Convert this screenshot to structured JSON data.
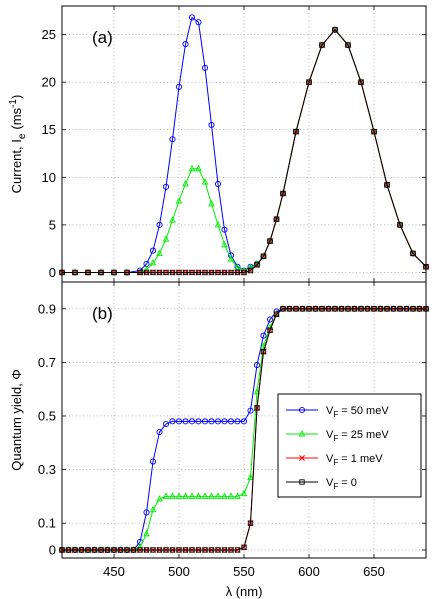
{
  "chart_data": [
    {
      "type": "line",
      "panel_label": "(a)",
      "ylabel": "Current, I",
      "ylabel_sub": "e",
      "ylabel_unit": "(ms",
      "ylabel_sup": "-1",
      "ylabel_close": ")",
      "xlim": [
        410,
        690
      ],
      "ylim": [
        -1,
        28
      ],
      "x_ticks": [
        450,
        500,
        550,
        600,
        650
      ],
      "y_ticks": [
        0,
        5,
        10,
        15,
        20,
        25
      ],
      "y_tick_labels": [
        "0",
        "5",
        "10",
        "15",
        "20",
        "25"
      ],
      "grid": true,
      "x": [
        410,
        420,
        430,
        440,
        450,
        460,
        470,
        475,
        480,
        485,
        490,
        495,
        500,
        505,
        510,
        515,
        520,
        525,
        530,
        535,
        540,
        545,
        550,
        555,
        560,
        565,
        570,
        575,
        580,
        590,
        600,
        610,
        620,
        630,
        640,
        650,
        660,
        670,
        680,
        690
      ],
      "series": [
        {
          "name": "V_F = 50 meV",
          "color": "#0000ff",
          "marker": "circle",
          "values": [
            0,
            0,
            0,
            0,
            0,
            0,
            0.2,
            0.9,
            2.3,
            5,
            9,
            14,
            19.5,
            24,
            26.8,
            26.3,
            21.5,
            15.5,
            9.3,
            4.5,
            1.8,
            0.6,
            0.2,
            0.6,
            0.9,
            1.7,
            3.3,
            5.6,
            8.3,
            14.8,
            20,
            23.9,
            25.5,
            23.9,
            20,
            14.8,
            9.2,
            5,
            2,
            0.6
          ]
        },
        {
          "name": "V_F = 25 meV",
          "color": "#00ee00",
          "marker": "triangle",
          "values": [
            0,
            0,
            0,
            0,
            0,
            0,
            0,
            0.3,
            1,
            2,
            3.5,
            5.5,
            7.5,
            9.3,
            10.9,
            10.9,
            9.5,
            7.2,
            5,
            2.9,
            1.4,
            0.5,
            0.2,
            0.5,
            0.9,
            1.7,
            3.3,
            5.6,
            8.3,
            14.8,
            20,
            23.9,
            25.5,
            23.9,
            20,
            14.8,
            9.2,
            5,
            2,
            0.6
          ]
        },
        {
          "name": "V_F = 1 meV",
          "color": "#ff0000",
          "marker": "x",
          "values": [
            0,
            0,
            0,
            0,
            0,
            0,
            0,
            0,
            0,
            0,
            0,
            0,
            0,
            0,
            0,
            0,
            0,
            0,
            0,
            0,
            0,
            0,
            0,
            0.2,
            0.8,
            1.7,
            3.3,
            5.6,
            8.3,
            14.8,
            20,
            23.9,
            25.5,
            23.9,
            20,
            14.8,
            9.2,
            5,
            2,
            0.6
          ]
        },
        {
          "name": "V_F = 0",
          "color": "#000000",
          "marker": "square",
          "values": [
            0,
            0,
            0,
            0,
            0,
            0,
            0,
            0,
            0,
            0,
            0,
            0,
            0,
            0,
            0,
            0,
            0,
            0,
            0,
            0,
            0,
            0,
            0,
            0.2,
            0.8,
            1.7,
            3.3,
            5.6,
            8.3,
            14.8,
            20,
            23.9,
            25.5,
            23.9,
            20,
            14.8,
            9.2,
            5,
            2,
            0.6
          ]
        }
      ]
    },
    {
      "type": "line",
      "panel_label": "(b)",
      "ylabel": "Quantum yield, Φ",
      "xlabel": "λ (nm)",
      "xlim": [
        410,
        690
      ],
      "ylim": [
        -0.03,
        1.0
      ],
      "x_ticks": [
        450,
        500,
        550,
        600,
        650
      ],
      "x_tick_labels": [
        "450",
        "500",
        "550",
        "600",
        "650"
      ],
      "y_ticks": [
        0,
        0.1,
        0.3,
        0.5,
        0.7,
        0.9
      ],
      "y_tick_labels": [
        "0",
        "0.1",
        "0.3",
        "0.5",
        "0.7",
        "0.9"
      ],
      "grid": true,
      "legend_position": "center-right",
      "x": [
        410,
        415,
        420,
        425,
        430,
        435,
        440,
        445,
        450,
        455,
        460,
        465,
        470,
        475,
        480,
        485,
        490,
        495,
        500,
        505,
        510,
        515,
        520,
        525,
        530,
        535,
        540,
        545,
        550,
        555,
        560,
        565,
        570,
        575,
        580,
        585,
        590,
        595,
        600,
        605,
        610,
        615,
        620,
        625,
        630,
        635,
        640,
        645,
        650,
        655,
        660,
        665,
        670,
        675,
        680,
        685,
        690
      ],
      "series": [
        {
          "name": "V_F = 50 meV",
          "color": "#0000ff",
          "marker": "circle",
          "values": [
            0,
            0,
            0,
            0,
            0,
            0,
            0,
            0,
            0,
            0,
            0,
            0,
            0.03,
            0.14,
            0.33,
            0.44,
            0.47,
            0.48,
            0.48,
            0.48,
            0.48,
            0.48,
            0.48,
            0.48,
            0.48,
            0.48,
            0.48,
            0.48,
            0.48,
            0.52,
            0.69,
            0.8,
            0.86,
            0.89,
            0.9,
            0.9,
            0.9,
            0.9,
            0.9,
            0.9,
            0.9,
            0.9,
            0.9,
            0.9,
            0.9,
            0.9,
            0.9,
            0.9,
            0.9,
            0.9,
            0.9,
            0.9,
            0.9,
            0.9,
            0.9,
            0.9,
            0.9
          ]
        },
        {
          "name": "V_F = 25 meV",
          "color": "#00ee00",
          "marker": "triangle",
          "values": [
            0,
            0,
            0,
            0,
            0,
            0,
            0,
            0,
            0,
            0,
            0,
            0,
            0.01,
            0.06,
            0.15,
            0.19,
            0.2,
            0.2,
            0.2,
            0.2,
            0.2,
            0.2,
            0.2,
            0.2,
            0.2,
            0.2,
            0.2,
            0.2,
            0.21,
            0.27,
            0.59,
            0.76,
            0.83,
            0.88,
            0.9,
            0.9,
            0.9,
            0.9,
            0.9,
            0.9,
            0.9,
            0.9,
            0.9,
            0.9,
            0.9,
            0.9,
            0.9,
            0.9,
            0.9,
            0.9,
            0.9,
            0.9,
            0.9,
            0.9,
            0.9,
            0.9,
            0.9
          ]
        },
        {
          "name": "V_F = 1 meV",
          "color": "#ff0000",
          "marker": "x",
          "values": [
            0,
            0,
            0,
            0,
            0,
            0,
            0,
            0,
            0,
            0,
            0,
            0,
            0,
            0,
            0,
            0,
            0,
            0,
            0,
            0,
            0,
            0,
            0,
            0,
            0,
            0,
            0,
            0,
            0.01,
            0.1,
            0.53,
            0.74,
            0.82,
            0.88,
            0.9,
            0.9,
            0.9,
            0.9,
            0.9,
            0.9,
            0.9,
            0.9,
            0.9,
            0.9,
            0.9,
            0.9,
            0.9,
            0.9,
            0.9,
            0.9,
            0.9,
            0.9,
            0.9,
            0.9,
            0.9,
            0.9,
            0.9
          ]
        },
        {
          "name": "V_F = 0",
          "color": "#000000",
          "marker": "square",
          "values": [
            0,
            0,
            0,
            0,
            0,
            0,
            0,
            0,
            0,
            0,
            0,
            0,
            0,
            0,
            0,
            0,
            0,
            0,
            0,
            0,
            0,
            0,
            0,
            0,
            0,
            0,
            0,
            0,
            0.01,
            0.1,
            0.53,
            0.74,
            0.82,
            0.88,
            0.9,
            0.9,
            0.9,
            0.9,
            0.9,
            0.9,
            0.9,
            0.9,
            0.9,
            0.9,
            0.9,
            0.9,
            0.9,
            0.9,
            0.9,
            0.9,
            0.9,
            0.9,
            0.9,
            0.9,
            0.9,
            0.9,
            0.9
          ]
        }
      ]
    }
  ],
  "legend": {
    "entries": [
      {
        "prefix": "V",
        "sub": "F",
        "suffix": " = 50 meV",
        "color": "#0000ff",
        "marker": "circle"
      },
      {
        "prefix": "V",
        "sub": "F",
        "suffix": " = 25 meV",
        "color": "#00ee00",
        "marker": "triangle"
      },
      {
        "prefix": "V",
        "sub": "F",
        "suffix": " = 1 meV",
        "color": "#ff0000",
        "marker": "x"
      },
      {
        "prefix": "V",
        "sub": "F",
        "suffix": " = 0",
        "color": "#000000",
        "marker": "square"
      }
    ]
  }
}
